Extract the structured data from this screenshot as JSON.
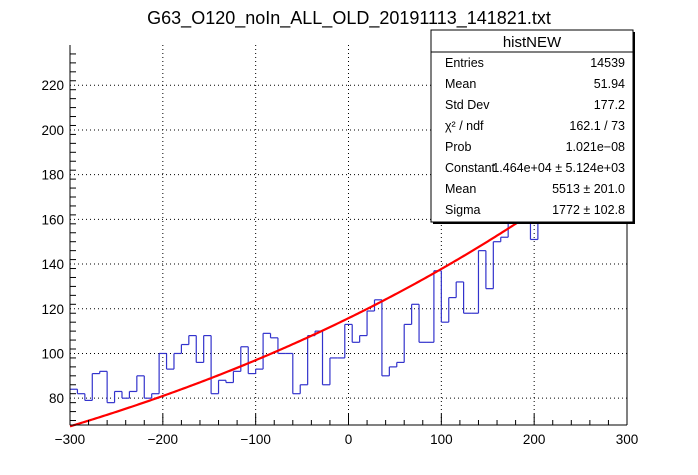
{
  "chart_data": {
    "type": "histogram",
    "title": "G63_O120_noIn_ALL_OLD_20191113_141821.txt",
    "xlabel": "",
    "ylabel": "",
    "xlim": [
      -300,
      300
    ],
    "ylim": [
      68,
      238
    ],
    "x_ticks": [
      -300,
      -200,
      -100,
      0,
      100,
      200,
      300
    ],
    "y_ticks": [
      80,
      100,
      120,
      140,
      160,
      180,
      200,
      220
    ],
    "grid": true,
    "colors": {
      "histogram": "#3333cc",
      "fit": "#ff0000",
      "axis": "#000000"
    },
    "bin_width": 8,
    "bins": [
      {
        "x0": -300,
        "v": 84
      },
      {
        "x0": -292,
        "v": 82
      },
      {
        "x0": -284,
        "v": 79
      },
      {
        "x0": -276,
        "v": 91
      },
      {
        "x0": -268,
        "v": 92
      },
      {
        "x0": -260,
        "v": 78
      },
      {
        "x0": -252,
        "v": 83
      },
      {
        "x0": -244,
        "v": 80
      },
      {
        "x0": -236,
        "v": 83
      },
      {
        "x0": -228,
        "v": 90
      },
      {
        "x0": -220,
        "v": 80
      },
      {
        "x0": -212,
        "v": 82
      },
      {
        "x0": -204,
        "v": 100
      },
      {
        "x0": -196,
        "v": 93
      },
      {
        "x0": -188,
        "v": 100
      },
      {
        "x0": -180,
        "v": 104
      },
      {
        "x0": -172,
        "v": 108
      },
      {
        "x0": -164,
        "v": 96
      },
      {
        "x0": -156,
        "v": 108
      },
      {
        "x0": -148,
        "v": 82
      },
      {
        "x0": -140,
        "v": 88
      },
      {
        "x0": -132,
        "v": 87
      },
      {
        "x0": -124,
        "v": 92
      },
      {
        "x0": -116,
        "v": 103
      },
      {
        "x0": -108,
        "v": 91
      },
      {
        "x0": -100,
        "v": 93
      },
      {
        "x0": -92,
        "v": 109
      },
      {
        "x0": -84,
        "v": 107
      },
      {
        "x0": -76,
        "v": 100
      },
      {
        "x0": -68,
        "v": 100
      },
      {
        "x0": -60,
        "v": 82
      },
      {
        "x0": -52,
        "v": 86
      },
      {
        "x0": -44,
        "v": 108
      },
      {
        "x0": -36,
        "v": 110
      },
      {
        "x0": -28,
        "v": 86
      },
      {
        "x0": -20,
        "v": 98
      },
      {
        "x0": -12,
        "v": 98
      },
      {
        "x0": -4,
        "v": 113
      },
      {
        "x0": 4,
        "v": 105
      },
      {
        "x0": 12,
        "v": 108
      },
      {
        "x0": 20,
        "v": 119
      },
      {
        "x0": 28,
        "v": 124
      },
      {
        "x0": 36,
        "v": 90
      },
      {
        "x0": 44,
        "v": 94
      },
      {
        "x0": 52,
        "v": 96
      },
      {
        "x0": 60,
        "v": 113
      },
      {
        "x0": 68,
        "v": 122
      },
      {
        "x0": 76,
        "v": 105
      },
      {
        "x0": 84,
        "v": 105
      },
      {
        "x0": 92,
        "v": 137
      },
      {
        "x0": 100,
        "v": 114
      },
      {
        "x0": 108,
        "v": 125
      },
      {
        "x0": 116,
        "v": 132
      },
      {
        "x0": 124,
        "v": 118
      },
      {
        "x0": 132,
        "v": 118
      },
      {
        "x0": 140,
        "v": 146
      },
      {
        "x0": 148,
        "v": 129
      },
      {
        "x0": 156,
        "v": 150
      },
      {
        "x0": 164,
        "v": 152
      },
      {
        "x0": 172,
        "v": 160
      },
      {
        "x0": 180,
        "v": 162
      },
      {
        "x0": 188,
        "v": 166
      },
      {
        "x0": 196,
        "v": 151
      },
      {
        "x0": 204,
        "v": 168
      }
    ],
    "fit": {
      "name": "gaus",
      "constant": 14640,
      "mean": 5513,
      "sigma": 1772
    },
    "stats_box": {
      "title": "histNEW",
      "rows": [
        {
          "label": "Entries",
          "value": "14539"
        },
        {
          "label": "Mean",
          "value": "51.94"
        },
        {
          "label": "Std Dev",
          "value": "177.2"
        },
        {
          "label": "χ² / ndf",
          "value": "162.1 / 73"
        },
        {
          "label": "Prob",
          "value": "1.021e−08"
        },
        {
          "label": "Constant",
          "value": "1.464e+04 ± 5.124e+03"
        },
        {
          "label": "Mean",
          "value": "5513 ± 201.0"
        },
        {
          "label": "Sigma",
          "value": "1772 ± 102.8"
        }
      ]
    }
  }
}
